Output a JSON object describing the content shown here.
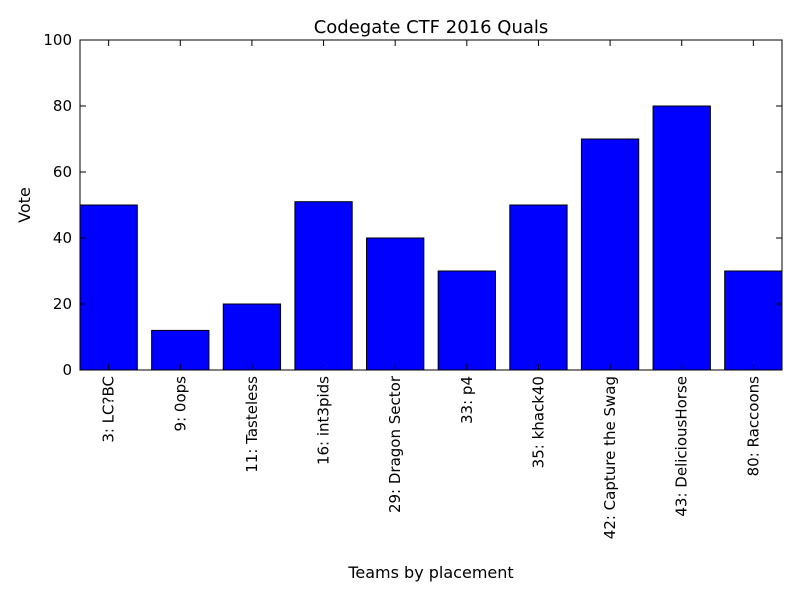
{
  "chart_data": {
    "type": "bar",
    "title": "Codegate CTF 2016 Quals",
    "xlabel": "Teams by placement",
    "ylabel": "Vote",
    "categories": [
      "3: LC?BC",
      "9: 0ops",
      "11: Tasteless",
      "16: int3pids",
      "29: Dragon Sector",
      "33: p4",
      "35: khack40",
      "42: Capture the Swag",
      "43: DeliciousHorse",
      "80: Raccoons"
    ],
    "values": [
      50,
      12,
      20,
      51,
      40,
      30,
      50,
      70,
      80,
      30
    ],
    "ylim": [
      0,
      100
    ],
    "yticks": [
      0,
      20,
      40,
      60,
      80,
      100
    ],
    "bar_color": "#0000ff",
    "grid": false,
    "legend": "none"
  }
}
